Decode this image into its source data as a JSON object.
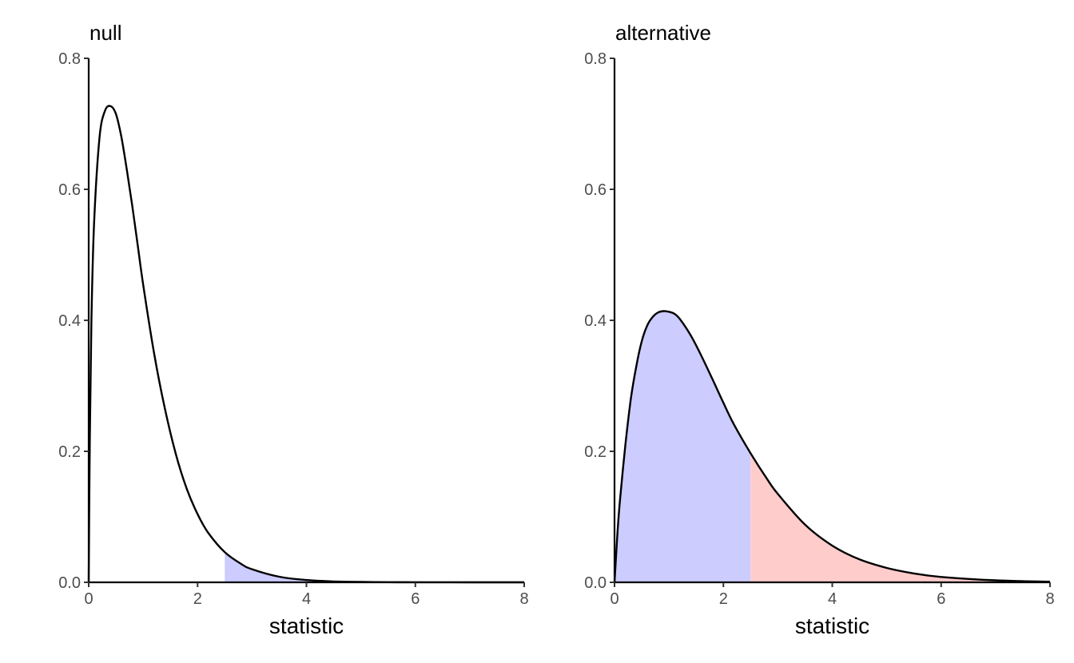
{
  "chart_data": [
    {
      "type": "area",
      "title": "null",
      "xlabel": "statistic",
      "ylabel": "",
      "xlim": [
        0,
        8
      ],
      "ylim": [
        0,
        0.8
      ],
      "xticks": [
        0,
        2,
        4,
        6,
        8
      ],
      "yticks": [
        0.0,
        0.2,
        0.4,
        0.6,
        0.8
      ],
      "xtick_labels": [
        "0",
        "2",
        "4",
        "6",
        "8"
      ],
      "ytick_labels": [
        "0.0",
        "0.2",
        "0.4",
        "0.6",
        "0.8"
      ],
      "grid": false,
      "series": [
        {
          "x": [
            0,
            0.02,
            0.05,
            0.1,
            0.2,
            0.3,
            0.4,
            0.5,
            0.6,
            0.7,
            0.8,
            0.9,
            1.0,
            1.2,
            1.4,
            1.6,
            1.8,
            2.0,
            2.2,
            2.5,
            2.8,
            3.0,
            3.5,
            4.0,
            4.5,
            5.0,
            5.5,
            6.0,
            7.0,
            8.0
          ],
          "values": [
            0,
            0.22,
            0.4,
            0.55,
            0.68,
            0.72,
            0.727,
            0.715,
            0.68,
            0.63,
            0.575,
            0.515,
            0.455,
            0.35,
            0.265,
            0.196,
            0.143,
            0.104,
            0.075,
            0.046,
            0.028,
            0.02,
            0.0085,
            0.0035,
            0.0014,
            0.0006,
            0.00025,
            0.0001,
            2e-05,
            0.0
          ]
        }
      ],
      "shaded_regions": [
        {
          "from": 2.5,
          "to": 8,
          "color": "#ccccff"
        }
      ]
    },
    {
      "type": "area",
      "title": "alternative",
      "xlabel": "statistic",
      "ylabel": "",
      "xlim": [
        0,
        8
      ],
      "ylim": [
        0,
        0.8
      ],
      "xticks": [
        0,
        2,
        4,
        6,
        8
      ],
      "yticks": [
        0.0,
        0.2,
        0.4,
        0.6,
        0.8
      ],
      "xtick_labels": [
        "0",
        "2",
        "4",
        "6",
        "8"
      ],
      "ytick_labels": [
        "0.0",
        "0.2",
        "0.4",
        "0.6",
        "0.8"
      ],
      "grid": false,
      "series": [
        {
          "x": [
            0,
            0.05,
            0.1,
            0.2,
            0.3,
            0.4,
            0.5,
            0.6,
            0.7,
            0.8,
            0.9,
            1.0,
            1.1,
            1.2,
            1.4,
            1.6,
            1.8,
            2.0,
            2.2,
            2.5,
            2.8,
            3.0,
            3.5,
            4.0,
            4.5,
            5.0,
            5.5,
            6.0,
            7.0,
            8.0
          ],
          "values": [
            0,
            0.07,
            0.125,
            0.21,
            0.28,
            0.33,
            0.368,
            0.392,
            0.405,
            0.412,
            0.414,
            0.413,
            0.41,
            0.402,
            0.377,
            0.345,
            0.31,
            0.274,
            0.24,
            0.197,
            0.158,
            0.135,
            0.088,
            0.056,
            0.035,
            0.022,
            0.0135,
            0.0082,
            0.003,
            0.001
          ]
        }
      ],
      "shaded_regions": [
        {
          "from": 0,
          "to": 2.5,
          "color": "#ccccff"
        },
        {
          "from": 2.5,
          "to": 8,
          "color": "#ffcccc"
        }
      ]
    }
  ]
}
